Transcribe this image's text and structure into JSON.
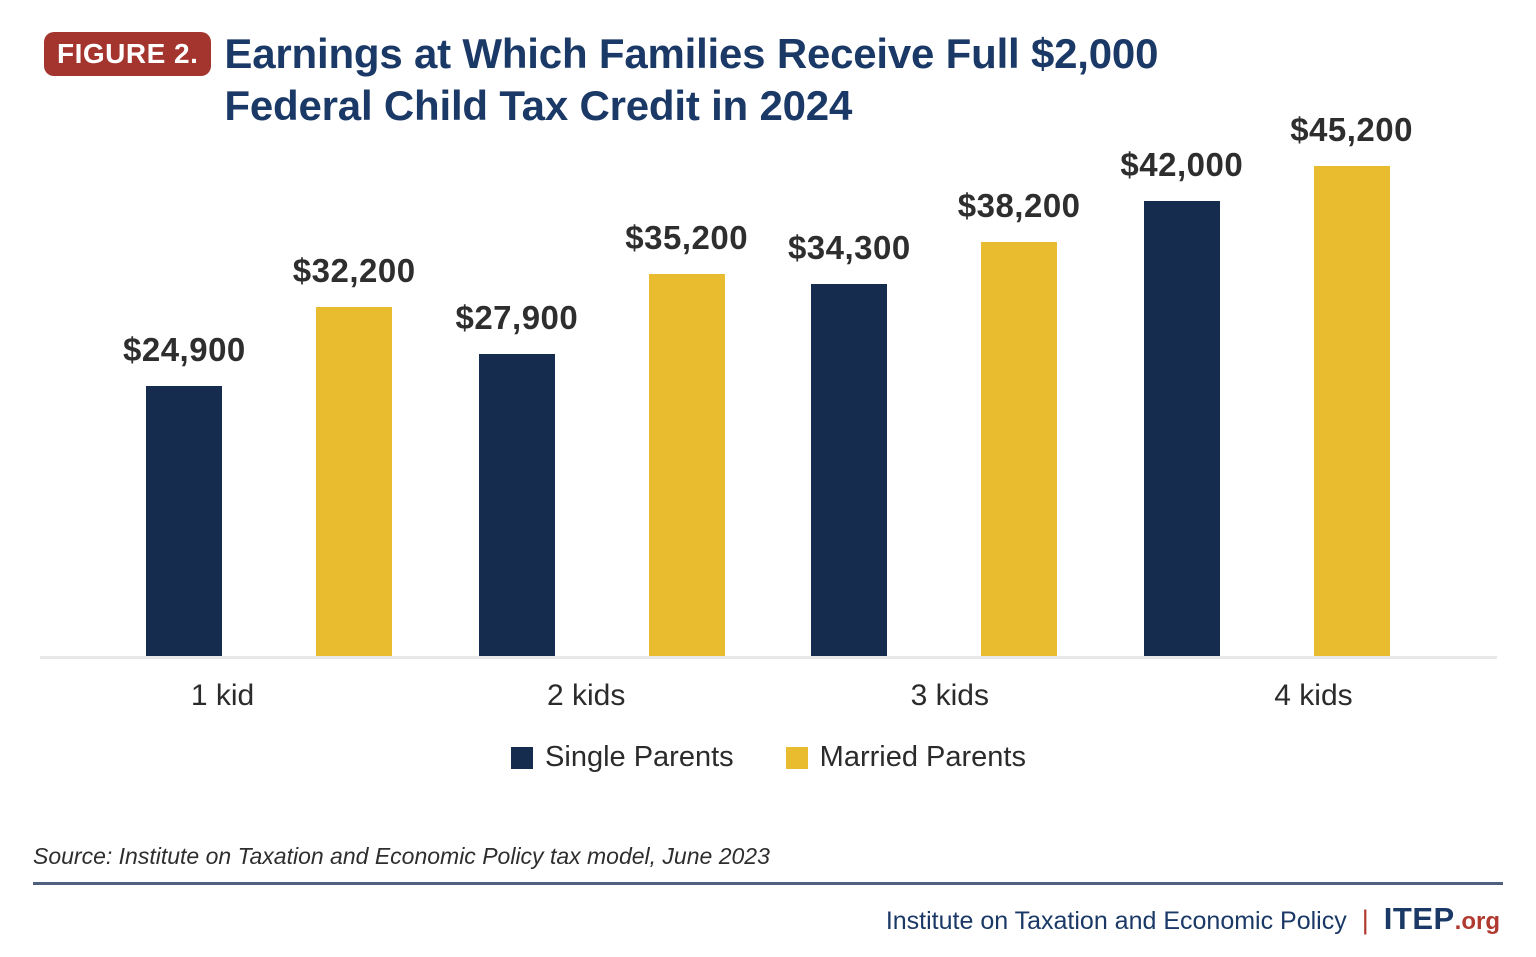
{
  "figure_badge": "FIGURE 2.",
  "title": {
    "line1": "Earnings at Which Families Receive Full $2,000",
    "line2": "Federal Child Tax Credit in 2024"
  },
  "chart_data": {
    "type": "bar",
    "title": "Earnings at Which Families Receive Full $2,000 Federal Child Tax Credit in 2024",
    "categories": [
      "1 kid",
      "2 kids",
      "3 kids",
      "4 kids"
    ],
    "series": [
      {
        "name": "Single Parents",
        "color": "#152C4E",
        "values": [
          24900,
          27900,
          34300,
          42000
        ],
        "labels": [
          "$24,900",
          "$27,900",
          "$34,300",
          "$42,000"
        ]
      },
      {
        "name": "Married Parents",
        "color": "#E9BC2F",
        "values": [
          32200,
          35200,
          38200,
          45200
        ],
        "labels": [
          "$32,200",
          "$35,200",
          "$38,200",
          "$45,200"
        ]
      }
    ],
    "ylim": [
      0,
      45200
    ],
    "grid": false,
    "value_labels": true,
    "legend_position": "bottom"
  },
  "source_note": "Source: Institute on Taxation and Economic Policy tax model, June 2023",
  "footer": {
    "org_name": "Institute on Taxation and Economic Policy",
    "separator": "|",
    "brand": "ITEP",
    "brand_suffix": ".org"
  },
  "colors": {
    "title_navy": "#1B3966",
    "badge_red": "#A4342E",
    "bar_navy": "#152C4E",
    "bar_gold": "#E9BC2F",
    "value_label_dark": "#2E2E2E",
    "baseline_gray": "#E8E8E8",
    "divider_slate": "#50617F",
    "footer_red": "#B03A30"
  }
}
